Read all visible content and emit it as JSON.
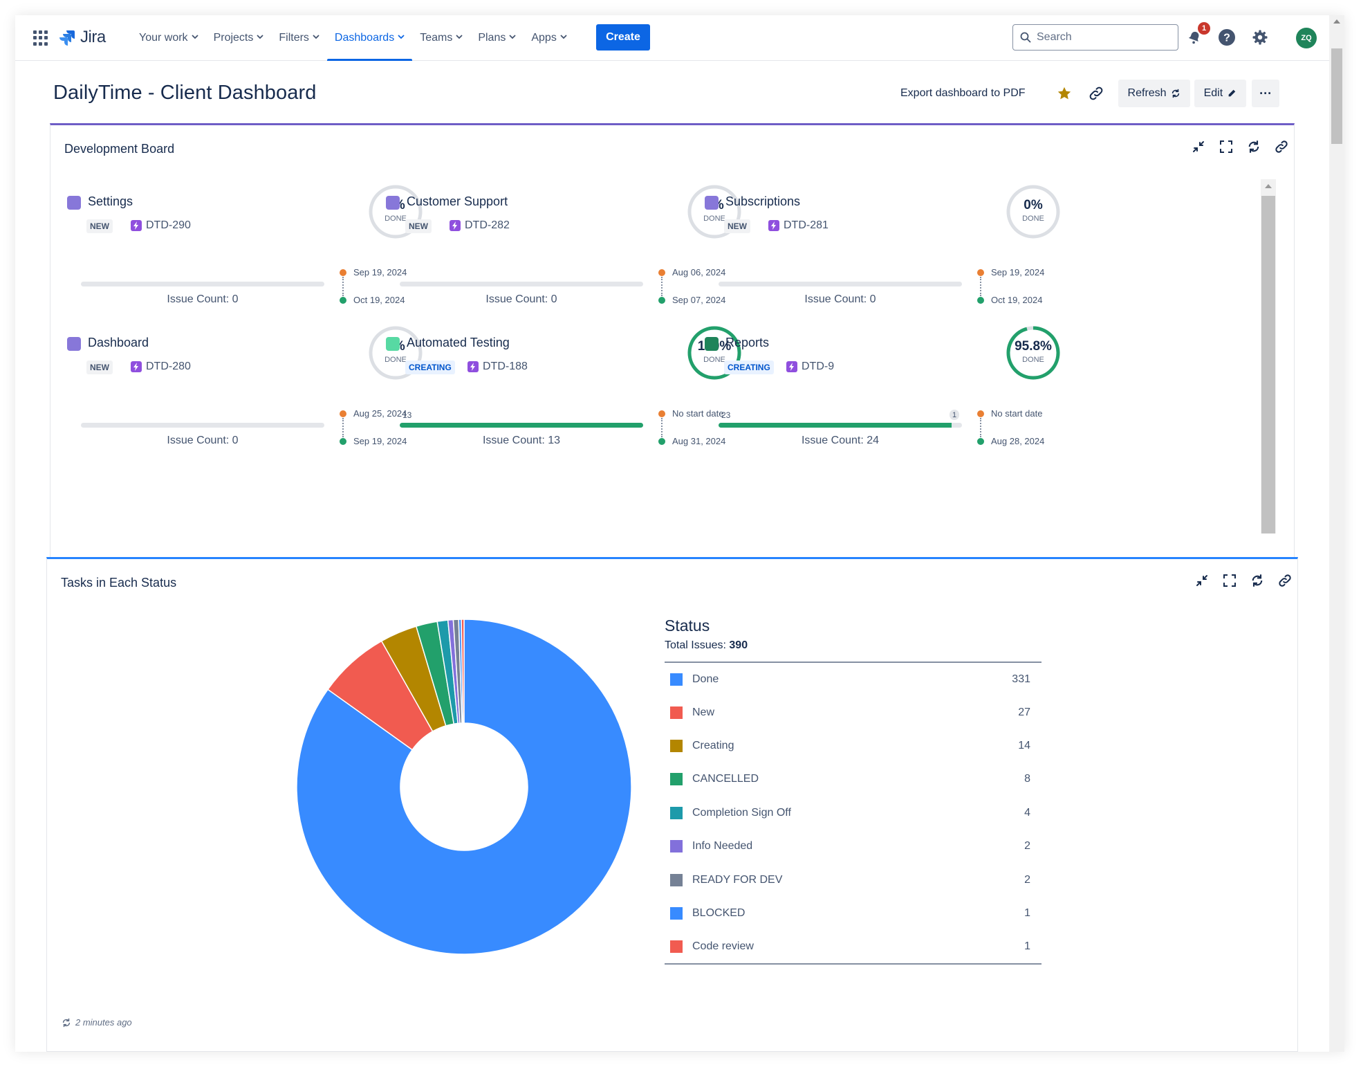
{
  "nav": {
    "app_name": "Jira",
    "items": [
      {
        "label": "Your work",
        "active": false
      },
      {
        "label": "Projects",
        "active": false
      },
      {
        "label": "Filters",
        "active": false
      },
      {
        "label": "Dashboards",
        "active": true
      },
      {
        "label": "Teams",
        "active": false
      },
      {
        "label": "Plans",
        "active": false
      },
      {
        "label": "Apps",
        "active": false
      }
    ],
    "create_label": "Create",
    "search_placeholder": "Search",
    "notification_count": "1",
    "avatar_initials": "ZQ"
  },
  "header": {
    "title": "DailyTime - Client Dashboard",
    "export_label": "Export dashboard to PDF",
    "refresh_label": "Refresh",
    "edit_label": "Edit",
    "more_label": "···"
  },
  "board": {
    "title": "Development Board",
    "cards": [
      {
        "name": "Settings",
        "color": "#8777d9",
        "status": "NEW",
        "status_kind": "new",
        "key": "DTD-290",
        "percent": "0%",
        "progress": 0,
        "done_label": "DONE",
        "bar_left": "",
        "bar_right": "",
        "bar_fill": 0,
        "issue_count": "Issue Count: 0",
        "start_date": "Sep 19, 2024",
        "end_date": "Oct 19, 2024"
      },
      {
        "name": "Customer Support",
        "color": "#8777d9",
        "status": "NEW",
        "status_kind": "new",
        "key": "DTD-282",
        "percent": "0%",
        "progress": 0,
        "done_label": "DONE",
        "bar_left": "",
        "bar_right": "",
        "bar_fill": 0,
        "issue_count": "Issue Count: 0",
        "start_date": "Aug 06, 2024",
        "end_date": "Sep 07, 2024"
      },
      {
        "name": "Subscriptions",
        "color": "#8777d9",
        "status": "NEW",
        "status_kind": "new",
        "key": "DTD-281",
        "percent": "0%",
        "progress": 0,
        "done_label": "DONE",
        "bar_left": "",
        "bar_right": "",
        "bar_fill": 0,
        "issue_count": "Issue Count: 0",
        "start_date": "Sep 19, 2024",
        "end_date": "Oct 19, 2024"
      },
      {
        "name": "Dashboard",
        "color": "#8777d9",
        "status": "NEW",
        "status_kind": "new",
        "key": "DTD-280",
        "percent": "0%",
        "progress": 0,
        "done_label": "DONE",
        "bar_left": "",
        "bar_right": "",
        "bar_fill": 0,
        "issue_count": "Issue Count: 0",
        "start_date": "Aug 25, 2024",
        "end_date": "Sep 19, 2024"
      },
      {
        "name": "Automated Testing",
        "color": "#57d9a3",
        "status": "CREATING",
        "status_kind": "creating",
        "key": "DTD-188",
        "percent": "100%",
        "progress": 1,
        "done_label": "DONE",
        "bar_left": "13",
        "bar_right": "",
        "bar_fill": 1,
        "issue_count": "Issue Count: 13",
        "start_date": "No start date",
        "end_date": "Aug 31, 2024"
      },
      {
        "name": "Reports",
        "color": "#1f845a",
        "status": "CREATING",
        "status_kind": "creating",
        "key": "DTD-9",
        "percent": "95.8%",
        "progress": 0.958,
        "done_label": "DONE",
        "bar_left": "23",
        "bar_right": "1",
        "bar_fill": 0.958,
        "issue_count": "Issue Count: 24",
        "start_date": "No start date",
        "end_date": "Aug 28, 2024"
      }
    ]
  },
  "status_gadget": {
    "title": "Tasks in Each Status",
    "updated": "2 minutes ago"
  },
  "chart_data": {
    "type": "pie",
    "title": "Status",
    "total_label": "Total Issues:",
    "total": 390,
    "categories": [
      "Done",
      "New",
      "Creating",
      "CANCELLED",
      "Completion Sign Off",
      "Info Needed",
      "READY FOR DEV",
      "BLOCKED",
      "Code review"
    ],
    "values": [
      331,
      27,
      14,
      8,
      4,
      2,
      2,
      1,
      1
    ],
    "colors": [
      "#388bff",
      "#f15b50",
      "#b38600",
      "#22a06b",
      "#1d9aaa",
      "#8270db",
      "#758195",
      "#388bff",
      "#f15b50"
    ],
    "donut": true
  }
}
